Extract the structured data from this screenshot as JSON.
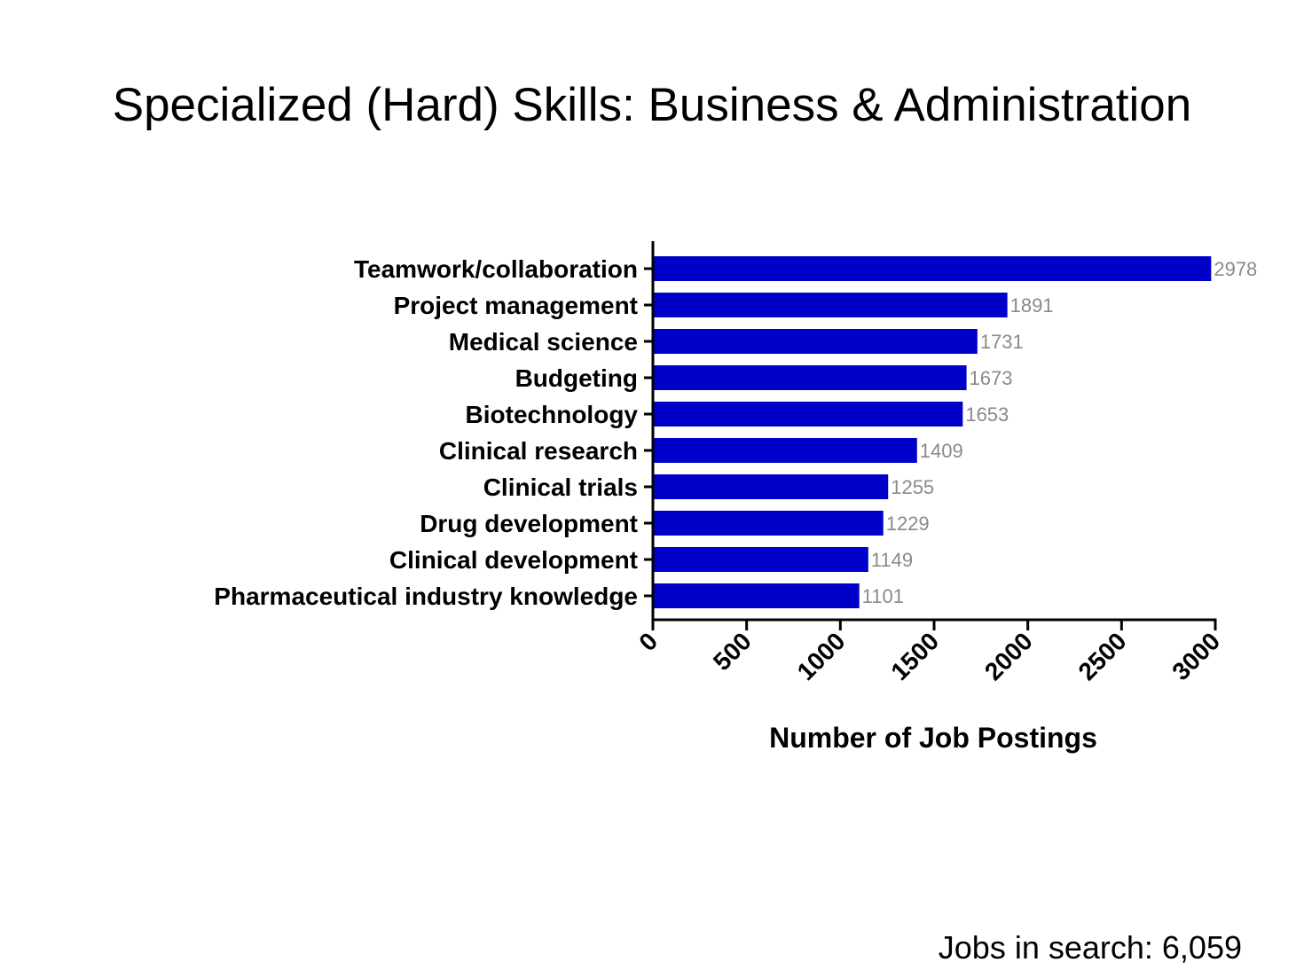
{
  "slide": {
    "title": "Specialized (Hard) Skills: Business & Administration",
    "footer": "Jobs in search: 6,059"
  },
  "colors": {
    "bar": "#0000c8",
    "value_label": "#8a8a8a",
    "axis": "#000000"
  },
  "chart_data": {
    "type": "bar",
    "orientation": "horizontal",
    "title": "Specialized (Hard) Skills: Business & Administration",
    "categories": [
      "Teamwork/collaboration",
      "Project management",
      "Medical science",
      "Budgeting",
      "Biotechnology",
      "Clinical research",
      "Clinical trials",
      "Drug development",
      "Clinical development",
      "Pharmaceutical industry knowledge"
    ],
    "values": [
      2978,
      1891,
      1731,
      1673,
      1653,
      1409,
      1255,
      1229,
      1149,
      1101
    ],
    "value_labels": [
      "2978",
      "1891",
      "1731",
      "1673",
      "1653",
      "1409",
      "1255",
      "1229",
      "1149",
      "1101"
    ],
    "xlabel": "Number of Job Postings",
    "ylabel": "",
    "xlim": [
      0,
      3000
    ],
    "xticks": [
      0,
      500,
      1000,
      1500,
      2000,
      2500,
      3000
    ],
    "xtick_labels": [
      "0",
      "500",
      "1000",
      "1500",
      "2000",
      "2500",
      "3000"
    ],
    "grid": false,
    "legend": "none",
    "data_labels": true
  }
}
